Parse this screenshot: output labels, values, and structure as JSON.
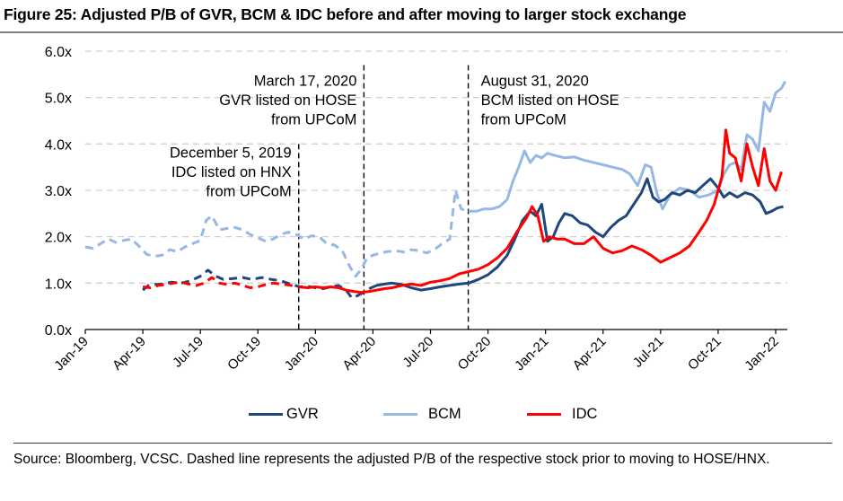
{
  "title": "Figure 25: Adjusted P/B of GVR, BCM & IDC before and after moving to larger stock exchange",
  "source_note": "Source: Bloomberg, VCSC. Dashed line represents the adjusted P/B of the respective stock prior to moving to HOSE/HNX.",
  "chart_data": {
    "type": "line",
    "title": "Adjusted P/B of GVR, BCM & IDC before and after moving to larger stock exchange",
    "xlabel": "",
    "ylabel": "",
    "x_unit": "months since Jan-2019",
    "xlim": [
      0,
      36.6
    ],
    "ylim": [
      0,
      6
    ],
    "y_ticks": [
      0,
      1,
      2,
      3,
      4,
      5,
      6
    ],
    "y_tick_labels": [
      "0.0x",
      "1.0x",
      "2.0x",
      "3.0x",
      "4.0x",
      "5.0x",
      "6.0x"
    ],
    "x_ticks": [
      0,
      3,
      6,
      9,
      12,
      15,
      18,
      21,
      24,
      27,
      30,
      33,
      36
    ],
    "x_tick_labels": [
      "Jan-19",
      "Apr-19",
      "Jul-19",
      "Oct-19",
      "Jan-20",
      "Apr-20",
      "Jul-20",
      "Oct-20",
      "Jan-21",
      "Apr-21",
      "Jul-21",
      "Oct-21",
      "Jan-22"
    ],
    "grid": "horizontal dashed",
    "legend_position": "bottom-center",
    "annotations": [
      {
        "x": 11.13,
        "lines": [
          "December 5, 2019",
          "IDC listed on HNX",
          "from UPCoM"
        ],
        "align": "right",
        "top_value": 4.0
      },
      {
        "x": 14.53,
        "lines": [
          "March 17, 2020",
          "GVR listed on HOSE",
          "from UPCoM"
        ],
        "align": "right",
        "top_value": 5.7
      },
      {
        "x": 19.97,
        "lines": [
          "August 31, 2020",
          "BCM listed on HOSE",
          "from UPCoM"
        ],
        "align": "left",
        "top_value": 5.7
      }
    ],
    "series": [
      {
        "name": "GVR",
        "color": "#1f477d",
        "listing_x": 14.53,
        "x": [
          3.0,
          3.3,
          3.6,
          4.0,
          4.5,
          5.0,
          5.5,
          6.0,
          6.4,
          6.8,
          7.2,
          7.7,
          8.2,
          8.7,
          9.2,
          9.7,
          10.2,
          10.7,
          11.2,
          11.6,
          12.0,
          12.4,
          12.8,
          13.2,
          13.6,
          13.9,
          14.2,
          14.5,
          14.8,
          15.2,
          15.6,
          16.0,
          16.5,
          17.0,
          17.5,
          18.0,
          18.5,
          19.0,
          19.5,
          20.0,
          20.5,
          21.0,
          21.5,
          22.0,
          22.4,
          22.8,
          23.2,
          23.5,
          23.8,
          24.1,
          24.4,
          24.7,
          25.0,
          25.4,
          25.8,
          26.2,
          26.6,
          27.0,
          27.4,
          27.8,
          28.2,
          28.6,
          29.0,
          29.3,
          29.6,
          29.9,
          30.2,
          30.6,
          31.0,
          31.4,
          31.8,
          32.2,
          32.6,
          33.0,
          33.3,
          33.6,
          34.0,
          34.4,
          34.8,
          35.2,
          35.5,
          35.8,
          36.1,
          36.4
        ],
        "values": [
          0.85,
          0.95,
          0.97,
          0.98,
          1.02,
          1.0,
          1.05,
          1.15,
          1.28,
          1.15,
          1.08,
          1.1,
          1.12,
          1.08,
          1.12,
          1.08,
          1.05,
          0.98,
          0.92,
          0.93,
          0.9,
          0.88,
          0.92,
          0.95,
          0.85,
          0.68,
          0.73,
          0.8,
          0.88,
          0.95,
          0.98,
          1.0,
          0.97,
          0.9,
          0.85,
          0.88,
          0.92,
          0.95,
          0.98,
          1.0,
          1.08,
          1.18,
          1.35,
          1.6,
          1.95,
          2.35,
          2.55,
          2.45,
          2.7,
          1.9,
          2.0,
          2.3,
          2.5,
          2.45,
          2.3,
          2.25,
          2.1,
          2.0,
          2.2,
          2.35,
          2.45,
          2.7,
          2.95,
          3.25,
          2.85,
          2.75,
          2.8,
          2.95,
          2.9,
          3.0,
          2.95,
          3.1,
          3.25,
          3.05,
          2.85,
          2.95,
          2.85,
          2.95,
          2.9,
          2.75,
          2.5,
          2.55,
          2.62,
          2.65
        ]
      },
      {
        "name": "BCM",
        "color": "#95b8e4",
        "listing_x": 19.97,
        "x": [
          0.0,
          0.4,
          0.8,
          1.2,
          1.6,
          2.0,
          2.4,
          2.8,
          3.2,
          3.6,
          4.0,
          4.4,
          4.8,
          5.2,
          5.6,
          6.0,
          6.3,
          6.6,
          7.0,
          7.4,
          7.8,
          8.2,
          8.6,
          9.0,
          9.4,
          9.8,
          10.2,
          10.6,
          11.0,
          11.4,
          11.8,
          12.2,
          12.6,
          13.0,
          13.4,
          13.8,
          14.1,
          14.4,
          14.7,
          15.0,
          15.4,
          15.8,
          16.2,
          16.6,
          17.0,
          17.4,
          17.8,
          18.2,
          18.6,
          19.0,
          19.3,
          19.6,
          19.97,
          20.4,
          20.8,
          21.2,
          21.6,
          22.0,
          22.3,
          22.6,
          22.9,
          23.2,
          23.5,
          23.8,
          24.1,
          24.5,
          25.0,
          25.5,
          26.0,
          26.5,
          27.0,
          27.5,
          28.0,
          28.4,
          28.8,
          29.2,
          29.5,
          29.8,
          30.1,
          30.5,
          31.0,
          31.5,
          32.0,
          32.5,
          33.0,
          33.3,
          33.6,
          33.9,
          34.2,
          34.5,
          34.8,
          35.1,
          35.4,
          35.7,
          36.0,
          36.3,
          36.5
        ],
        "values": [
          1.78,
          1.75,
          1.85,
          1.95,
          1.88,
          1.92,
          1.95,
          1.8,
          1.62,
          1.58,
          1.6,
          1.72,
          1.68,
          1.78,
          1.85,
          1.92,
          2.35,
          2.45,
          2.15,
          2.18,
          2.2,
          2.15,
          2.05,
          1.98,
          1.9,
          1.95,
          2.05,
          2.1,
          2.05,
          1.95,
          2.02,
          2.0,
          1.85,
          1.82,
          1.7,
          1.35,
          1.15,
          1.3,
          1.55,
          1.6,
          1.65,
          1.68,
          1.7,
          1.67,
          1.72,
          1.7,
          1.65,
          1.72,
          1.85,
          1.95,
          3.0,
          2.6,
          2.55,
          2.55,
          2.6,
          2.6,
          2.65,
          2.8,
          3.2,
          3.5,
          3.85,
          3.6,
          3.75,
          3.7,
          3.8,
          3.75,
          3.7,
          3.72,
          3.65,
          3.6,
          3.55,
          3.5,
          3.45,
          3.35,
          3.1,
          3.55,
          3.5,
          2.95,
          2.6,
          2.9,
          3.05,
          3.0,
          2.85,
          2.9,
          3.0,
          3.35,
          3.55,
          3.6,
          3.45,
          4.2,
          4.1,
          3.85,
          4.9,
          4.7,
          5.1,
          5.2,
          5.35
        ]
      },
      {
        "name": "IDC",
        "color": "#ff0000",
        "listing_x": 11.13,
        "x": [
          3.0,
          3.4,
          3.8,
          4.2,
          4.6,
          5.0,
          5.4,
          5.8,
          6.2,
          6.6,
          7.0,
          7.4,
          7.8,
          8.2,
          8.6,
          9.0,
          9.4,
          9.8,
          10.2,
          10.6,
          11.13,
          11.6,
          12.0,
          12.4,
          12.8,
          13.2,
          13.6,
          14.0,
          14.4,
          14.8,
          15.2,
          15.6,
          16.0,
          16.5,
          17.0,
          17.5,
          18.0,
          18.5,
          19.0,
          19.5,
          20.0,
          20.5,
          21.0,
          21.5,
          22.0,
          22.5,
          23.0,
          23.3,
          23.6,
          23.9,
          24.2,
          24.6,
          25.0,
          25.5,
          26.0,
          26.5,
          27.0,
          27.5,
          28.0,
          28.5,
          29.0,
          29.5,
          30.0,
          30.5,
          31.0,
          31.5,
          32.0,
          32.4,
          32.8,
          33.0,
          33.2,
          33.4,
          33.6,
          33.9,
          34.2,
          34.5,
          34.8,
          35.1,
          35.4,
          35.7,
          36.0,
          36.3
        ],
        "values": [
          0.92,
          0.9,
          0.95,
          0.97,
          1.0,
          1.02,
          0.98,
          0.95,
          1.0,
          1.12,
          1.0,
          0.97,
          1.0,
          0.95,
          0.9,
          0.92,
          0.97,
          1.0,
          0.98,
          0.96,
          0.92,
          0.9,
          0.92,
          0.9,
          0.92,
          0.9,
          0.85,
          0.82,
          0.8,
          0.82,
          0.85,
          0.88,
          0.9,
          0.95,
          0.98,
          0.95,
          1.02,
          1.05,
          1.1,
          1.2,
          1.25,
          1.3,
          1.4,
          1.55,
          1.75,
          2.1,
          2.4,
          2.65,
          2.45,
          1.9,
          2.0,
          1.95,
          1.95,
          1.85,
          1.85,
          2.0,
          1.75,
          1.65,
          1.7,
          1.8,
          1.72,
          1.6,
          1.45,
          1.55,
          1.65,
          1.8,
          2.1,
          2.35,
          2.7,
          3.0,
          3.3,
          4.3,
          3.8,
          3.7,
          3.2,
          4.0,
          3.5,
          3.1,
          3.9,
          3.2,
          3.0,
          3.4
        ]
      }
    ]
  }
}
